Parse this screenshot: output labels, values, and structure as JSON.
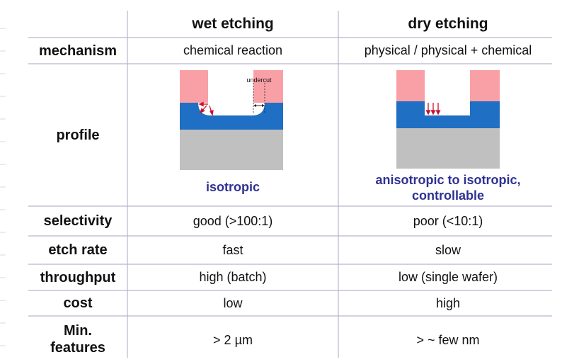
{
  "table": {
    "columns": [
      "wet etching",
      "dry etching"
    ],
    "rows": [
      {
        "label": "mechanism",
        "wet": "chemical reaction",
        "dry": "physical / physical + chemical"
      },
      {
        "label": "profile",
        "wet": "isotropic",
        "dry": "anisotropic to isotropic, controllable"
      },
      {
        "label": "selectivity",
        "wet": "good (>100:1)",
        "dry": "poor (<10:1)"
      },
      {
        "label": "etch rate",
        "wet": "fast",
        "dry": "slow"
      },
      {
        "label": "throughput",
        "wet": "high (batch)",
        "dry": "low (single wafer)"
      },
      {
        "label": "cost",
        "wet": "low",
        "dry": "high"
      },
      {
        "label": "Min. features",
        "wet": "> 2 µm",
        "dry": "> ~ few nm"
      }
    ]
  },
  "diagram": {
    "undercut_label": "undercut",
    "colors": {
      "mask": "#f9a0a6",
      "film": "#1f6fc4",
      "substrate": "#c0c0c0",
      "arrow": "#c8102e",
      "caption": "#2e3192",
      "grid": "#b9b3cf"
    }
  }
}
